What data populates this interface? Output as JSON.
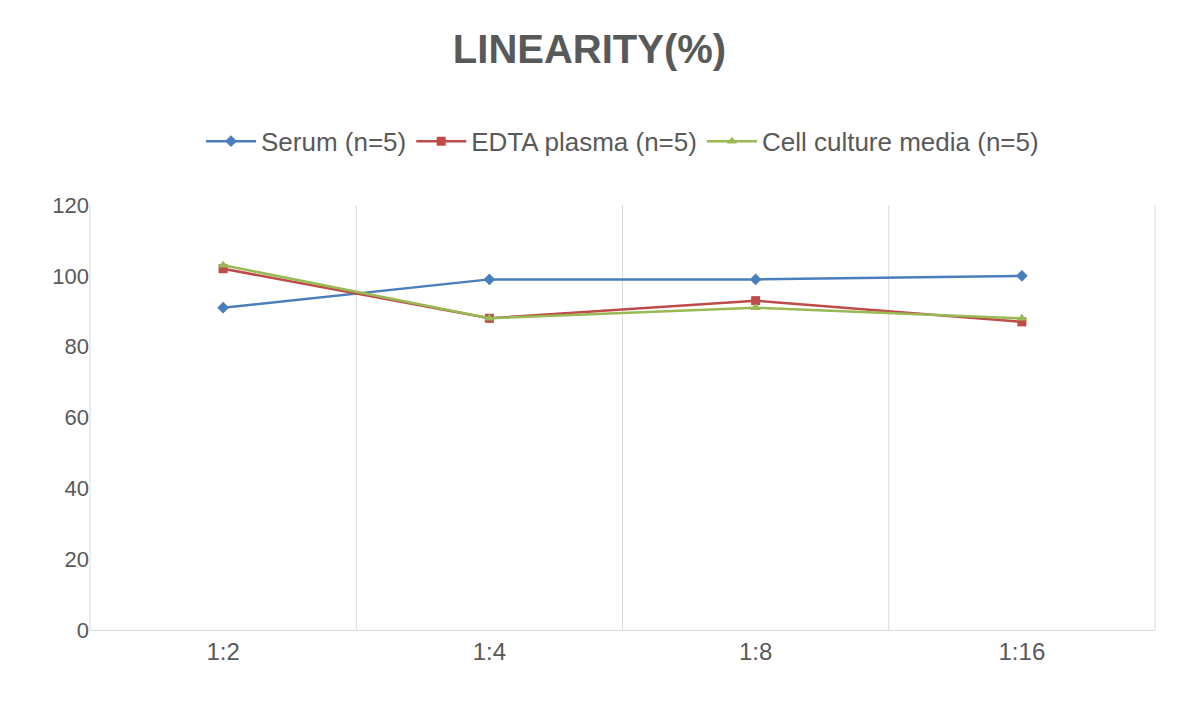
{
  "chart_data": {
    "type": "line",
    "title": "LINEARITY(%)",
    "categories": [
      "1:2",
      "1:4",
      "1:8",
      "1:16"
    ],
    "series": [
      {
        "name": "Serum (n=5)",
        "color": "#4a7ebb",
        "marker": "diamond",
        "values": [
          91,
          99,
          99,
          100
        ]
      },
      {
        "name": "EDTA plasma (n=5)",
        "color": "#be4b48",
        "marker": "square",
        "values": [
          102,
          88,
          93,
          87
        ]
      },
      {
        "name": "Cell culture media (n=5)",
        "color": "#98b954",
        "marker": "triangle-up",
        "values": [
          103,
          88,
          91,
          88
        ]
      }
    ],
    "ylim": [
      0,
      120
    ],
    "yticks": [
      0,
      20,
      40,
      60,
      80,
      100,
      120
    ],
    "grid": true,
    "legend": "top"
  }
}
